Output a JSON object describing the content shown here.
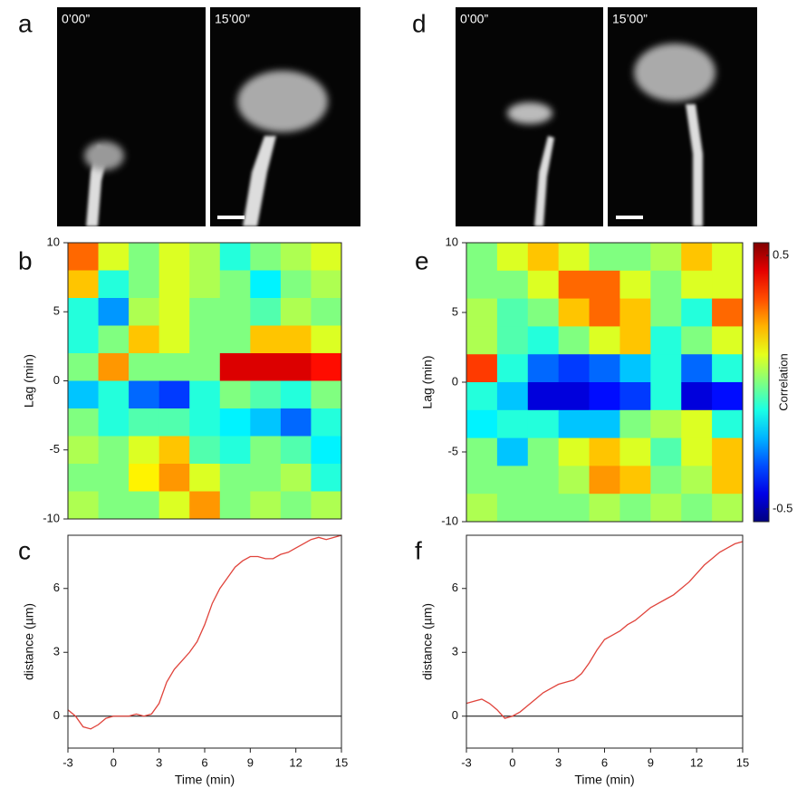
{
  "panels": [
    {
      "label": "a",
      "frames": [
        "0’00”",
        "15’00”"
      ]
    },
    {
      "label": "d",
      "frames": [
        "0’00”",
        "15’00”"
      ]
    }
  ],
  "chart_data": [
    {
      "panel": "b",
      "type": "heatmap",
      "ylabel": "Lag (min)",
      "x": [
        -2,
        0,
        2,
        4,
        6,
        8,
        10,
        12,
        14
      ],
      "y": [
        9,
        7,
        5,
        3,
        1,
        -1,
        -3,
        -5,
        -7,
        -9
      ],
      "z": [
        [
          0.3,
          0.1,
          0,
          0.1,
          0.05,
          -0.1,
          0,
          0.05,
          0.1
        ],
        [
          0.2,
          -0.1,
          0,
          0.1,
          0.05,
          0,
          -0.15,
          0,
          0.05
        ],
        [
          -0.1,
          -0.25,
          0.05,
          0.1,
          0,
          0,
          -0.05,
          0.05,
          0
        ],
        [
          -0.1,
          0,
          0.2,
          0.1,
          0,
          0,
          0.2,
          0.2,
          0.1
        ],
        [
          0,
          0.25,
          0,
          0,
          0,
          0.45,
          0.45,
          0.45,
          0.4
        ],
        [
          -0.2,
          -0.1,
          -0.3,
          -0.35,
          -0.1,
          0,
          -0.05,
          -0.1,
          0
        ],
        [
          0,
          -0.1,
          -0.05,
          -0.05,
          -0.1,
          -0.15,
          -0.2,
          -0.3,
          -0.1
        ],
        [
          0.05,
          0,
          0.1,
          0.2,
          -0.05,
          -0.1,
          0,
          -0.05,
          -0.15
        ],
        [
          0,
          0,
          0.15,
          0.25,
          0.1,
          0,
          0,
          0.05,
          -0.1
        ],
        [
          0.05,
          0,
          0,
          0.1,
          0.25,
          0,
          0.05,
          0,
          0.05
        ]
      ],
      "zlim": [
        -0.55,
        0.55
      ],
      "xlim": [
        -3,
        15
      ],
      "ylim": [
        -10,
        10
      ],
      "yticks": [
        -10,
        -5,
        0,
        5,
        10
      ]
    },
    {
      "panel": "c",
      "type": "line",
      "xlabel": "Time (min)",
      "ylabel": "distance (µm)",
      "x": [
        -3,
        -2.5,
        -2,
        -1.5,
        -1,
        -0.5,
        0,
        0.5,
        1,
        1.5,
        2,
        2.5,
        3,
        3.5,
        4,
        4.5,
        5,
        5.5,
        6,
        6.5,
        7,
        7.5,
        8,
        8.5,
        9,
        9.5,
        10,
        10.5,
        11,
        11.5,
        12,
        12.5,
        13,
        13.5,
        14,
        14.5,
        15
      ],
      "series": [
        {
          "color": "#e0443c",
          "values": [
            0.3,
            0,
            -0.5,
            -0.6,
            -0.4,
            -0.1,
            0,
            0,
            0,
            0.1,
            0,
            0.1,
            0.6,
            1.6,
            2.2,
            2.6,
            3.0,
            3.5,
            4.3,
            5.3,
            6.0,
            6.5,
            7.0,
            7.3,
            7.5,
            7.5,
            7.4,
            7.4,
            7.6,
            7.7,
            7.9,
            8.1,
            8.3,
            8.4,
            8.3,
            8.4,
            8.5
          ]
        }
      ],
      "reference_line": 0,
      "xlim": [
        -3,
        15
      ],
      "xticks": [
        -3,
        0,
        3,
        6,
        9,
        12,
        15
      ],
      "ylim": [
        -1.5,
        8.5
      ],
      "yticks": [
        0,
        3,
        6
      ]
    },
    {
      "panel": "e",
      "type": "heatmap",
      "ylabel": "Lag (min)",
      "x": [
        -2,
        0,
        2,
        4,
        6,
        8,
        10,
        12,
        14
      ],
      "y": [
        9,
        7,
        5,
        3,
        1,
        -1,
        -3,
        -5,
        -7,
        -9
      ],
      "z": [
        [
          0,
          0.1,
          0.2,
          0.1,
          0,
          0,
          0.05,
          0.2,
          0.1
        ],
        [
          0,
          0,
          0.1,
          0.3,
          0.3,
          0.1,
          0,
          0.1,
          0.1
        ],
        [
          0.05,
          -0.05,
          0,
          0.2,
          0.3,
          0.2,
          0,
          -0.1,
          0.3
        ],
        [
          0.05,
          -0.05,
          -0.1,
          0,
          0.1,
          0.2,
          -0.1,
          0,
          0.1
        ],
        [
          0.35,
          -0.1,
          -0.3,
          -0.35,
          -0.3,
          -0.2,
          -0.1,
          -0.3,
          -0.1
        ],
        [
          -0.1,
          -0.2,
          -0.45,
          -0.45,
          -0.4,
          -0.35,
          -0.1,
          -0.45,
          -0.4
        ],
        [
          -0.15,
          -0.1,
          -0.1,
          -0.2,
          -0.2,
          0,
          0.05,
          0.1,
          -0.1
        ],
        [
          0,
          -0.2,
          0,
          0.1,
          0.2,
          0.1,
          -0.05,
          0.1,
          0.2
        ],
        [
          0,
          0,
          0,
          0.05,
          0.25,
          0.2,
          0,
          0.05,
          0.2
        ],
        [
          0.05,
          0,
          0,
          0,
          0.05,
          0,
          0.05,
          0,
          0.05
        ]
      ],
      "zlim": [
        -0.55,
        0.55
      ],
      "xlim": [
        -3,
        15
      ],
      "ylim": [
        -10,
        10
      ],
      "yticks": [
        -10,
        -5,
        0,
        5,
        10
      ],
      "colorbar": {
        "label": "Correlation",
        "ticks": [
          -0.5,
          0.5
        ]
      }
    },
    {
      "panel": "f",
      "type": "line",
      "xlabel": "Time (min)",
      "ylabel": "distance (µm)",
      "x": [
        -3,
        -2.5,
        -2,
        -1.5,
        -1,
        -0.5,
        0,
        0.5,
        1,
        1.5,
        2,
        2.5,
        3,
        3.5,
        4,
        4.5,
        5,
        5.5,
        6,
        6.5,
        7,
        7.5,
        8,
        8.5,
        9,
        9.5,
        10,
        10.5,
        11,
        11.5,
        12,
        12.5,
        13,
        13.5,
        14,
        14.5,
        15
      ],
      "series": [
        {
          "color": "#e0443c",
          "values": [
            0.6,
            0.7,
            0.8,
            0.6,
            0.3,
            -0.1,
            0,
            0.2,
            0.5,
            0.8,
            1.1,
            1.3,
            1.5,
            1.6,
            1.7,
            2.0,
            2.5,
            3.1,
            3.6,
            3.8,
            4.0,
            4.3,
            4.5,
            4.8,
            5.1,
            5.3,
            5.5,
            5.7,
            6.0,
            6.3,
            6.7,
            7.1,
            7.4,
            7.7,
            7.9,
            8.1,
            8.2
          ]
        }
      ],
      "reference_line": 0,
      "xlim": [
        -3,
        15
      ],
      "xticks": [
        -3,
        0,
        3,
        6,
        9,
        12,
        15
      ],
      "ylim": [
        -1.5,
        8.5
      ],
      "yticks": [
        0,
        3,
        6
      ]
    }
  ]
}
